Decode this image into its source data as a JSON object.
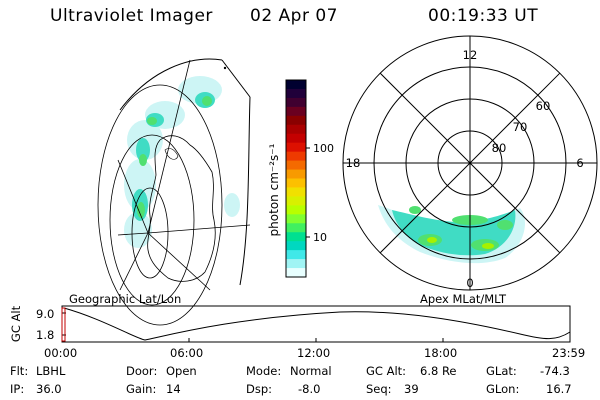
{
  "header": {
    "instrument": "Ultraviolet Imager",
    "date": "02 Apr 07",
    "time": "00:19:33 UT"
  },
  "colorbar": {
    "label": "photon cm⁻²s⁻¹",
    "ticks": [
      "100",
      "10"
    ],
    "colors": [
      "#000030",
      "#20003a",
      "#400030",
      "#6a0020",
      "#8a0000",
      "#aa0000",
      "#c40000",
      "#dd1000",
      "#ee3a00",
      "#f46a00",
      "#f89a00",
      "#fcc000",
      "#f0e000",
      "#d8f000",
      "#b8ff00",
      "#80ff30",
      "#40f060",
      "#00e090",
      "#00d8c0",
      "#40e8e8",
      "#a0f4f4",
      "#e8ffff"
    ]
  },
  "left_map": {
    "title": "Geographic Lat/Lon"
  },
  "right_map": {
    "title": "Apex MLat/MLT",
    "mlt_labels": {
      "top": "12",
      "left": "18",
      "right": "6",
      "bottom": "0"
    },
    "lat_labels": [
      "60",
      "70",
      "80"
    ]
  },
  "gc_alt_plot": {
    "axis_label": "GC Alt",
    "y_ticks": [
      "9.0",
      "1.8"
    ],
    "x_ticks": [
      "00:00",
      "06:00",
      "12:00",
      "18:00",
      "23:59"
    ]
  },
  "status": {
    "flt_label": "Flt:",
    "flt_value": "LBHL",
    "ip_label": "IP:",
    "ip_value": "36.0",
    "door_label": "Door:",
    "door_value": "Open",
    "gain_label": "Gain:",
    "gain_value": "14",
    "mode_label": "Mode:",
    "mode_value": "Normal",
    "dsp_label": "Dsp:",
    "dsp_value": "-8.0",
    "gcalt_label": "GC Alt:",
    "gcalt_value": "6.8 Re",
    "seq_label": "Seq:",
    "seq_value": "39",
    "glat_label": "GLat:",
    "glat_value": "-74.3",
    "glon_label": "GLon:",
    "glon_value": "16.7"
  }
}
